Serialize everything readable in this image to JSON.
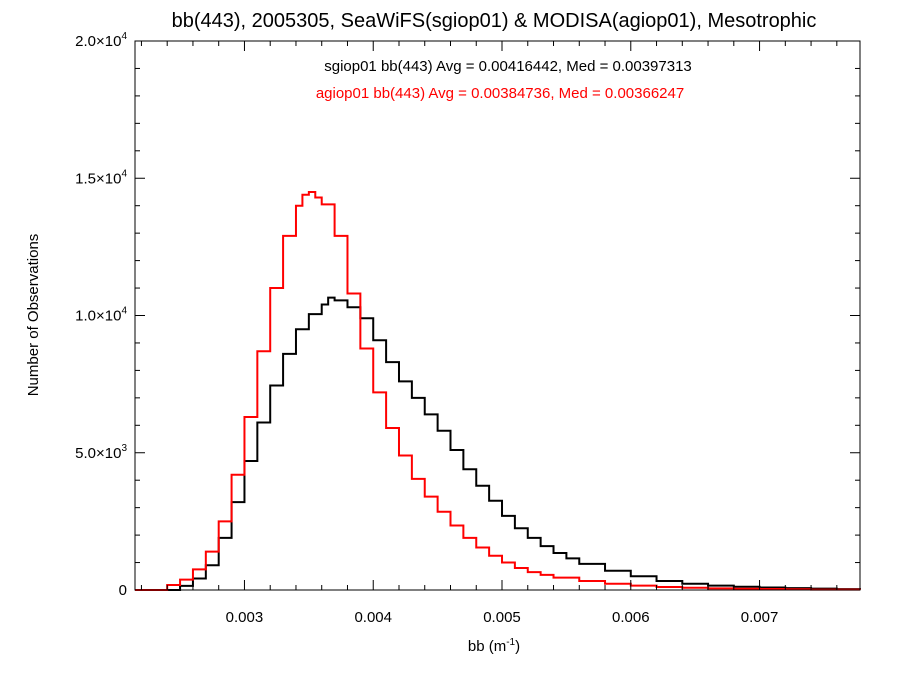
{
  "chart_data": {
    "type": "line",
    "title": "bb(443), 2005305, SeaWiFS(sgiop01) & MODISA(agiop01), Mesotrophic",
    "xlabel": "bb (m",
    "xlabel_sup": "-1",
    "xlabel_close": ")",
    "ylabel": "Number of Observations",
    "xlim": [
      0.00215,
      0.00778
    ],
    "ylim": [
      0,
      20000
    ],
    "x_ticks": [
      0.003,
      0.004,
      0.005,
      0.006,
      0.007
    ],
    "x_tick_labels": [
      "0.003",
      "0.004",
      "0.005",
      "0.006",
      "0.007"
    ],
    "y_ticks": [
      0,
      5000,
      10000,
      15000,
      20000
    ],
    "y_tick_labels": [
      {
        "mant": "0",
        "sup": ""
      },
      {
        "mant": "5.0×10",
        "sup": "3"
      },
      {
        "mant": "1.0×10",
        "sup": "4"
      },
      {
        "mant": "1.5×10",
        "sup": "4"
      },
      {
        "mant": "2.0×10",
        "sup": "4"
      }
    ],
    "grid": false,
    "legend_placement": "top-center",
    "series": [
      {
        "name": "sgiop01",
        "label": "sgiop01 bb(443) Avg = 0.00416442, Med = 0.00397313",
        "color": "#000000",
        "step": "post",
        "points": [
          [
            0.00215,
            0
          ],
          [
            0.0024,
            0
          ],
          [
            0.0025,
            150
          ],
          [
            0.0026,
            420
          ],
          [
            0.0027,
            900
          ],
          [
            0.0028,
            1900
          ],
          [
            0.0029,
            3200
          ],
          [
            0.003,
            4700
          ],
          [
            0.0031,
            6100
          ],
          [
            0.0032,
            7450
          ],
          [
            0.0033,
            8600
          ],
          [
            0.0034,
            9500
          ],
          [
            0.0035,
            10050
          ],
          [
            0.0036,
            10400
          ],
          [
            0.00365,
            10650
          ],
          [
            0.0037,
            10550
          ],
          [
            0.0038,
            10300
          ],
          [
            0.0039,
            9900
          ],
          [
            0.004,
            9100
          ],
          [
            0.0041,
            8300
          ],
          [
            0.0042,
            7600
          ],
          [
            0.0043,
            7000
          ],
          [
            0.0044,
            6400
          ],
          [
            0.0045,
            5800
          ],
          [
            0.0046,
            5100
          ],
          [
            0.0047,
            4400
          ],
          [
            0.0048,
            3800
          ],
          [
            0.0049,
            3250
          ],
          [
            0.005,
            2700
          ],
          [
            0.0051,
            2250
          ],
          [
            0.0052,
            1900
          ],
          [
            0.0053,
            1600
          ],
          [
            0.0054,
            1350
          ],
          [
            0.0055,
            1150
          ],
          [
            0.0056,
            950
          ],
          [
            0.0058,
            700
          ],
          [
            0.006,
            500
          ],
          [
            0.0062,
            330
          ],
          [
            0.0064,
            230
          ],
          [
            0.0066,
            160
          ],
          [
            0.0068,
            120
          ],
          [
            0.007,
            90
          ],
          [
            0.0072,
            70
          ],
          [
            0.0074,
            50
          ],
          [
            0.0076,
            30
          ],
          [
            0.00778,
            20
          ]
        ]
      },
      {
        "name": "agiop01",
        "label": "agiop01 bb(443) Avg = 0.00384736, Med = 0.00366247",
        "color": "#ff0000",
        "step": "post",
        "points": [
          [
            0.00215,
            0
          ],
          [
            0.00236,
            0
          ],
          [
            0.0024,
            180
          ],
          [
            0.0025,
            380
          ],
          [
            0.0026,
            750
          ],
          [
            0.0027,
            1400
          ],
          [
            0.0028,
            2500
          ],
          [
            0.0029,
            4200
          ],
          [
            0.003,
            6300
          ],
          [
            0.0031,
            8700
          ],
          [
            0.0032,
            11000
          ],
          [
            0.0033,
            12900
          ],
          [
            0.0034,
            14000
          ],
          [
            0.00345,
            14400
          ],
          [
            0.0035,
            14500
          ],
          [
            0.00355,
            14300
          ],
          [
            0.0036,
            14050
          ],
          [
            0.0037,
            12900
          ],
          [
            0.0038,
            10800
          ],
          [
            0.0039,
            8800
          ],
          [
            0.004,
            7200
          ],
          [
            0.0041,
            5900
          ],
          [
            0.0042,
            4900
          ],
          [
            0.0043,
            4050
          ],
          [
            0.0044,
            3400
          ],
          [
            0.0045,
            2850
          ],
          [
            0.0046,
            2350
          ],
          [
            0.0047,
            1900
          ],
          [
            0.0048,
            1550
          ],
          [
            0.0049,
            1250
          ],
          [
            0.005,
            1000
          ],
          [
            0.0051,
            800
          ],
          [
            0.0052,
            650
          ],
          [
            0.0053,
            550
          ],
          [
            0.0054,
            450
          ],
          [
            0.0056,
            330
          ],
          [
            0.0058,
            230
          ],
          [
            0.006,
            160
          ],
          [
            0.0062,
            110
          ],
          [
            0.0064,
            80
          ],
          [
            0.0066,
            60
          ],
          [
            0.0068,
            45
          ],
          [
            0.007,
            35
          ],
          [
            0.0072,
            25
          ],
          [
            0.0074,
            15
          ],
          [
            0.00778,
            10
          ]
        ]
      }
    ]
  }
}
